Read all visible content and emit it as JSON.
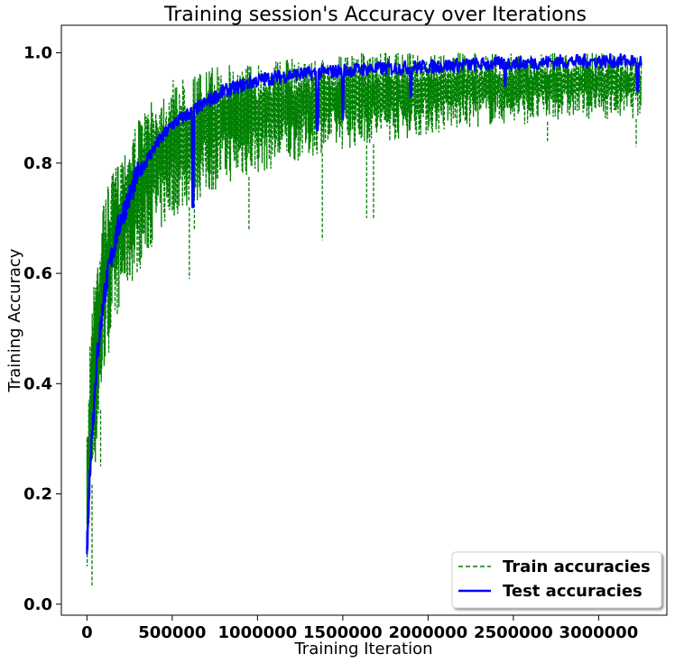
{
  "chart_data": {
    "type": "line",
    "title": "Training session's Accuracy over Iterations",
    "xlabel": "Training Iteration",
    "ylabel": "Training Accuracy",
    "xlim": [
      -150000,
      3400000
    ],
    "ylim": [
      -0.02,
      1.05
    ],
    "x_ticks": [
      0,
      500000,
      1000000,
      1500000,
      2000000,
      2500000,
      3000000
    ],
    "x_tick_labels": [
      "0",
      "500000",
      "1000000",
      "1500000",
      "2000000",
      "2500000",
      "3000000"
    ],
    "y_ticks": [
      0.0,
      0.2,
      0.4,
      0.6,
      0.8,
      1.0
    ],
    "y_tick_labels": [
      "0.0",
      "0.2",
      "0.4",
      "0.6",
      "0.8",
      "1.0"
    ],
    "grid": false,
    "legend_position": "bottom-right",
    "series": [
      {
        "name": "Train accuracies",
        "color": "#008000",
        "style": "dashed",
        "band": {
          "x": [
            0,
            20000,
            50000,
            100000,
            200000,
            300000,
            400000,
            500000,
            600000,
            700000,
            800000,
            1000000,
            1200000,
            1400000,
            1600000,
            1800000,
            2000000,
            2200000,
            2400000,
            2600000,
            2800000,
            3000000,
            3250000
          ],
          "low": [
            0.03,
            0.2,
            0.25,
            0.42,
            0.55,
            0.6,
            0.66,
            0.7,
            0.72,
            0.74,
            0.76,
            0.78,
            0.8,
            0.82,
            0.83,
            0.84,
            0.85,
            0.86,
            0.87,
            0.87,
            0.88,
            0.88,
            0.88
          ],
          "high": [
            0.3,
            0.5,
            0.62,
            0.74,
            0.82,
            0.88,
            0.92,
            0.95,
            0.96,
            0.97,
            0.98,
            0.985,
            0.99,
            0.99,
            1.0,
            1.0,
            1.0,
            1.0,
            1.0,
            1.0,
            1.0,
            1.0,
            1.0
          ]
        },
        "outliers": [
          [
            30000,
            0.03
          ],
          [
            80000,
            0.25
          ],
          [
            600000,
            0.59
          ],
          [
            630000,
            0.68
          ],
          [
            950000,
            0.68
          ],
          [
            1380000,
            0.66
          ],
          [
            1640000,
            0.7
          ],
          [
            1680000,
            0.7
          ],
          [
            2700000,
            0.84
          ],
          [
            3220000,
            0.83
          ]
        ]
      },
      {
        "name": "Test accuracies",
        "color": "#0000ff",
        "style": "solid",
        "x": [
          0,
          10000,
          20000,
          40000,
          60000,
          100000,
          150000,
          200000,
          250000,
          300000,
          400000,
          500000,
          600000,
          700000,
          800000,
          900000,
          1000000,
          1200000,
          1400000,
          1600000,
          1800000,
          2000000,
          2200000,
          2400000,
          2600000,
          2800000,
          3000000,
          3250000
        ],
        "y": [
          0.1,
          0.18,
          0.26,
          0.36,
          0.45,
          0.56,
          0.64,
          0.7,
          0.74,
          0.78,
          0.83,
          0.87,
          0.89,
          0.91,
          0.93,
          0.94,
          0.95,
          0.96,
          0.965,
          0.97,
          0.972,
          0.975,
          0.978,
          0.98,
          0.982,
          0.984,
          0.985,
          0.985
        ],
        "dips": [
          [
            620000,
            0.72
          ],
          [
            1350000,
            0.86
          ],
          [
            1500000,
            0.88
          ],
          [
            1900000,
            0.92
          ],
          [
            2450000,
            0.94
          ],
          [
            3230000,
            0.93
          ]
        ]
      }
    ]
  }
}
